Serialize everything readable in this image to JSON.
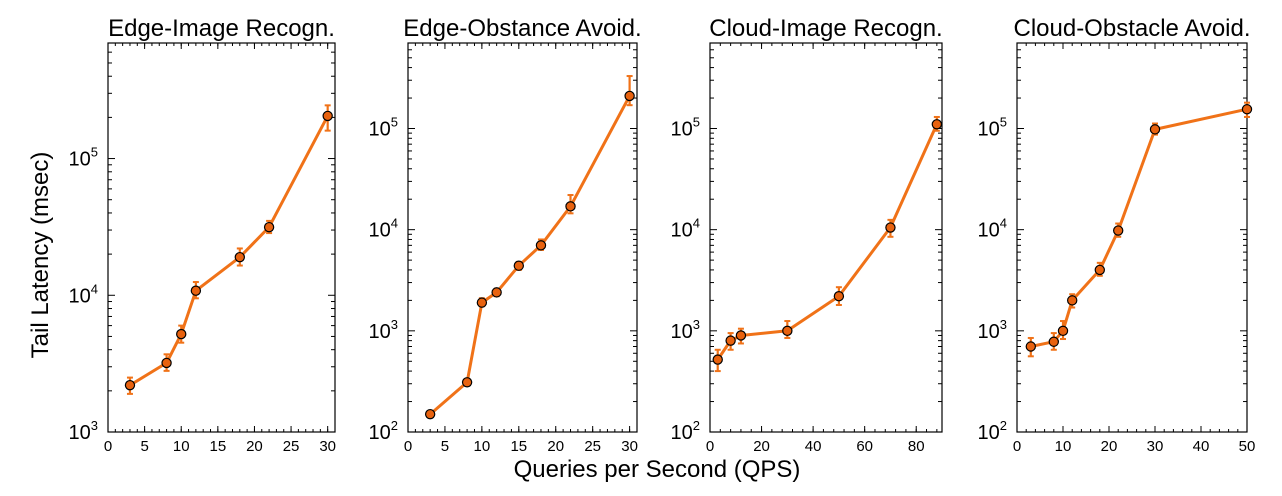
{
  "figure": {
    "ylabel": "Tail Latency (msec)",
    "xlabel": "Queries per Second (QPS)"
  },
  "colors": {
    "series": "#f07218",
    "marker_fill": "#e8620f",
    "marker_edge": "#000000"
  },
  "chart_data": [
    {
      "type": "line",
      "title": "Edge-Image Recogn.",
      "yscale": "log",
      "xlim": [
        0,
        31
      ],
      "xticks": [
        0,
        5,
        10,
        15,
        20,
        25,
        30
      ],
      "ylim": [
        1000,
        700000
      ],
      "yticks": [
        1000,
        10000,
        100000
      ],
      "yticklabels": [
        {
          "base": "10",
          "exp": "3"
        },
        {
          "base": "10",
          "exp": "4"
        },
        {
          "base": "10",
          "exp": "5"
        }
      ],
      "series": [
        {
          "x": [
            3,
            8,
            10,
            12,
            18,
            22,
            30
          ],
          "y": [
            2200,
            3200,
            5200,
            10800,
            19000,
            31500,
            205000
          ],
          "err_lo": [
            1900,
            2800,
            4500,
            9500,
            16500,
            28500,
            160000
          ],
          "err_hi": [
            2500,
            3700,
            6000,
            12500,
            22000,
            35000,
            245000
          ]
        }
      ]
    },
    {
      "type": "line",
      "title": "Edge-Obstance Avoid.",
      "yscale": "log",
      "xlim": [
        0,
        31
      ],
      "xticks": [
        0,
        5,
        10,
        15,
        20,
        25,
        30
      ],
      "ylim": [
        100,
        700000
      ],
      "yticks": [
        100,
        1000,
        10000,
        100000
      ],
      "yticklabels": [
        {
          "base": "10",
          "exp": "2"
        },
        {
          "base": "10",
          "exp": "3"
        },
        {
          "base": "10",
          "exp": "4"
        },
        {
          "base": "10",
          "exp": "5"
        }
      ],
      "series": [
        {
          "x": [
            3,
            8,
            10,
            12,
            15,
            18,
            22,
            30
          ],
          "y": [
            150,
            310,
            1900,
            2400,
            4400,
            7000,
            17000,
            210000
          ],
          "err_lo": [
            140,
            290,
            1750,
            2200,
            4000,
            6300,
            14500,
            170000
          ],
          "err_hi": [
            160,
            330,
            2100,
            2600,
            4800,
            8000,
            22000,
            330000
          ]
        }
      ]
    },
    {
      "type": "line",
      "title": "Cloud-Image Recogn.",
      "yscale": "log",
      "xlim": [
        0,
        90
      ],
      "xticks": [
        0,
        20,
        40,
        60,
        80
      ],
      "ylim": [
        100,
        700000
      ],
      "yticks": [
        100,
        1000,
        10000,
        100000
      ],
      "yticklabels": [
        {
          "base": "10",
          "exp": "2"
        },
        {
          "base": "10",
          "exp": "3"
        },
        {
          "base": "10",
          "exp": "4"
        },
        {
          "base": "10",
          "exp": "5"
        }
      ],
      "series": [
        {
          "x": [
            3,
            8,
            12,
            30,
            50,
            70,
            88
          ],
          "y": [
            520,
            800,
            900,
            1000,
            2200,
            10500,
            110000
          ],
          "err_lo": [
            400,
            650,
            750,
            850,
            1800,
            8500,
            95000
          ],
          "err_hi": [
            650,
            950,
            1050,
            1250,
            2700,
            12500,
            130000
          ]
        }
      ]
    },
    {
      "type": "line",
      "title": "Cloud-Obstacle Avoid.",
      "yscale": "log",
      "xlim": [
        0,
        50
      ],
      "xticks": [
        0,
        10,
        20,
        30,
        40,
        50
      ],
      "ylim": [
        100,
        700000
      ],
      "yticks": [
        100,
        1000,
        10000,
        100000
      ],
      "yticklabels": [
        {
          "base": "10",
          "exp": "2"
        },
        {
          "base": "10",
          "exp": "3"
        },
        {
          "base": "10",
          "exp": "4"
        },
        {
          "base": "10",
          "exp": "5"
        }
      ],
      "series": [
        {
          "x": [
            3,
            8,
            10,
            12,
            18,
            22,
            30,
            50
          ],
          "y": [
            700,
            780,
            1000,
            2000,
            4000,
            9800,
            98000,
            155000
          ],
          "err_lo": [
            560,
            650,
            830,
            1700,
            3500,
            8500,
            87000,
            130000
          ],
          "err_hi": [
            850,
            950,
            1250,
            2300,
            4700,
            11500,
            112000,
            180000
          ]
        }
      ]
    }
  ]
}
